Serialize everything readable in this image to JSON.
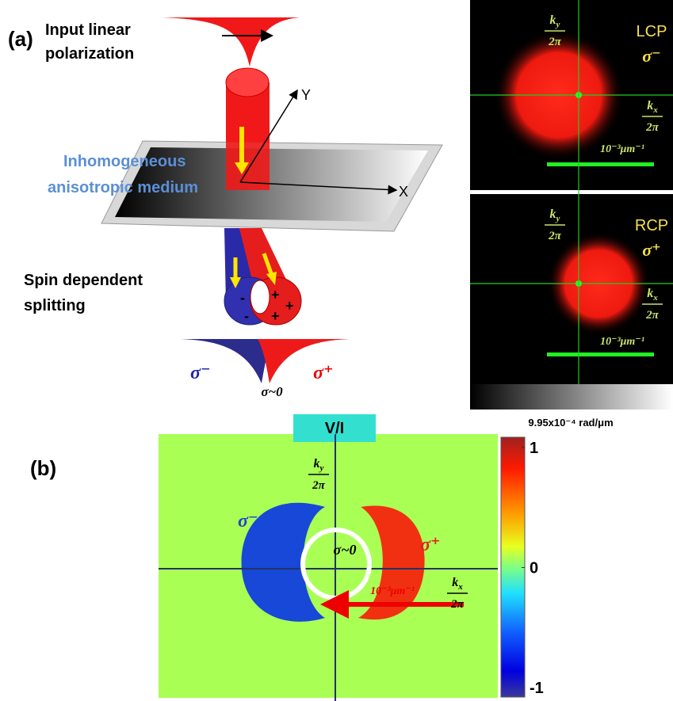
{
  "panel_a": {
    "label": "(a)",
    "input": [
      "Input linear",
      "polarization"
    ],
    "axis_y": "Y",
    "axis_x": "X",
    "medium": [
      "Inhomogeneous",
      "anisotropic medium"
    ],
    "splitting": [
      "Spin dependent",
      "splitting"
    ],
    "sigma_minus": "σ⁻",
    "sigma_plus": "σ⁺",
    "sigma_zero": "σ~0",
    "beam_signs": {
      "plus": [
        "+",
        "+",
        "+"
      ],
      "minus": [
        "-",
        "-"
      ]
    }
  },
  "images": [
    {
      "ky": {
        "k": "k",
        "sub": "y",
        "den": "2π"
      },
      "pol": "LCP",
      "sigma": "σ⁻",
      "kx": {
        "k": "k",
        "sub": "x",
        "den": "2π"
      },
      "scale": "10⁻³μm⁻¹"
    },
    {
      "ky": {
        "k": "k",
        "sub": "y",
        "den": "2π"
      },
      "pol": "RCP",
      "sigma": "σ⁺",
      "kx": {
        "k": "k",
        "sub": "x",
        "den": "2π"
      },
      "scale": "10⁻³μm⁻¹"
    }
  ],
  "gradient_label": "9.95x10⁻⁴ rad/μm",
  "panel_b": {
    "label": "(b)",
    "title": "V/I",
    "ky": {
      "k": "k",
      "sub": "y",
      "den": "2π"
    },
    "kx": {
      "k": "k",
      "sub": "x",
      "den": "2π"
    },
    "sigma_minus": "σ⁻",
    "sigma_plus": "σ⁺",
    "sigma_zero": "σ~0",
    "scale": "10⁻³μm⁻¹",
    "colorbar_ticks": [
      1,
      0,
      -1
    ]
  }
}
